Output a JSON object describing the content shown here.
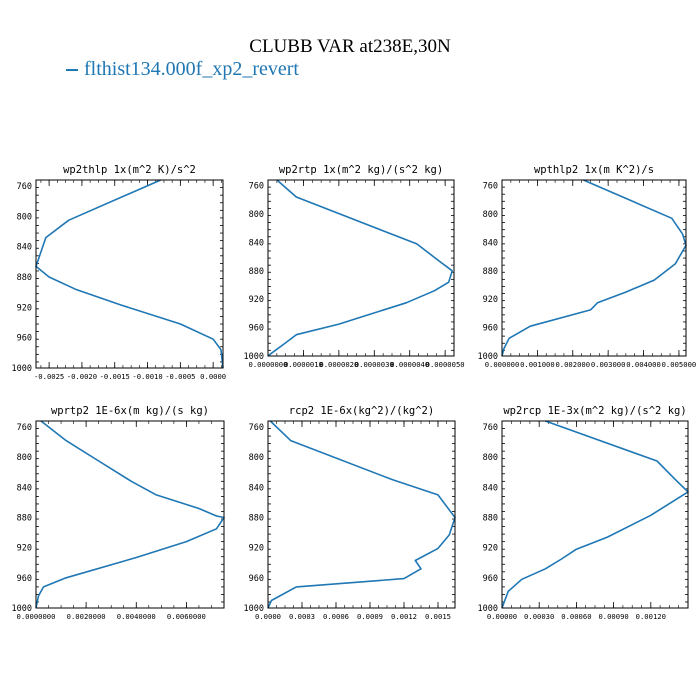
{
  "figure": {
    "title": "CLUBB VAR at238E,30N",
    "legend_label": "flthist134.000f_xp2_revert",
    "line_color": "#1f77b4"
  },
  "chart_data": [
    {
      "type": "line",
      "title": "wp2thlp  1x(m^2 K)/s^2",
      "xlim": [
        -0.0027,
        0.00015
      ],
      "ylim": [
        1000,
        752
      ],
      "xticks": [
        -0.0025,
        -0.002,
        -0.0015,
        -0.001,
        -0.0005,
        0.0
      ],
      "xtick_labels": [
        "-0.0025",
        "-0.0020",
        "-0.0015",
        "-0.0010",
        "-0.0005",
        "0.0000"
      ],
      "yticks": [
        760,
        800,
        840,
        880,
        920,
        960,
        1000
      ],
      "series": [
        {
          "x": [
            -0.0008,
            -0.0022,
            -0.00255,
            -0.0027,
            -0.0025,
            -0.0021,
            -0.0014,
            -0.0005,
            0.0,
            0.00012,
            0.00015
          ],
          "y": [
            752,
            805,
            828,
            866,
            880,
            896,
            917,
            942,
            962,
            976,
            1000
          ]
        }
      ]
    },
    {
      "type": "line",
      "title": "wp2rtp  1x(m^2 kg)/(s^2 kg)",
      "xlim": [
        0.0,
        5.25e-06
      ],
      "ylim": [
        1000,
        752
      ],
      "xticks": [
        0.0,
        1e-06,
        2e-06,
        3e-06,
        4e-06,
        5e-06
      ],
      "xtick_labels": [
        "0.0000000",
        "0.0000010",
        "0.0000020",
        "0.0000030",
        "0.0000040",
        "0.0000050"
      ],
      "yticks": [
        760,
        800,
        840,
        880,
        920,
        960,
        1000
      ],
      "series": [
        {
          "x": [
            2.5e-07,
            8e-07,
            4.2e-06,
            4.8e-06,
            5.2e-06,
            5.1e-06,
            4.7e-06,
            3.9e-06,
            2e-06,
            8e-07,
            4e-07,
            1e-07,
            0.0
          ],
          "y": [
            752,
            776,
            842,
            865,
            880,
            896,
            908,
            925,
            955,
            970,
            985,
            996,
            1000
          ]
        }
      ]
    },
    {
      "type": "line",
      "title": "wpthlp2  1x(m K^2)/s",
      "xlim": [
        0.0,
        0.0052
      ],
      "ylim": [
        1000,
        752
      ],
      "xticks": [
        0.0,
        0.001,
        0.002,
        0.003,
        0.004,
        0.005
      ],
      "xtick_labels": [
        "0.000000",
        "0.001000",
        "0.002000",
        "0.003000",
        "0.004000",
        "0.005000"
      ],
      "yticks": [
        760,
        800,
        840,
        880,
        920,
        960,
        1000
      ],
      "series": [
        {
          "x": [
            0.0023,
            0.0048,
            0.0051,
            0.0052,
            0.0049,
            0.0043,
            0.0035,
            0.0027,
            0.0025,
            0.0008,
            0.0002,
            5e-05,
            0.0
          ],
          "y": [
            752,
            806,
            828,
            844,
            870,
            893,
            910,
            925,
            935,
            958,
            975,
            990,
            1000
          ]
        }
      ]
    },
    {
      "type": "line",
      "title": "wprtp2  1E-6x(m kg)/(s kg)",
      "xlim": [
        0.0,
        0.0075
      ],
      "ylim": [
        1000,
        752
      ],
      "xticks": [
        0.0,
        0.002,
        0.004,
        0.006
      ],
      "xtick_labels": [
        "0.0000000",
        "0.0020000",
        "0.0040000",
        "0.0060000"
      ],
      "yticks": [
        760,
        800,
        840,
        880,
        920,
        960,
        1000
      ],
      "series": [
        {
          "x": [
            0.0002,
            0.0012,
            0.0025,
            0.0038,
            0.0048,
            0.0065,
            0.0072,
            0.0075,
            0.0072,
            0.006,
            0.004,
            0.0012,
            0.0003,
            0.0001,
            0.0
          ],
          "y": [
            752,
            778,
            805,
            832,
            850,
            868,
            878,
            880,
            895,
            912,
            933,
            960,
            972,
            984,
            1000
          ]
        }
      ]
    },
    {
      "type": "line",
      "title": "rcp2  1E-6x(kg^2)/(kg^2)",
      "xlim": [
        0.0,
        0.00165
      ],
      "ylim": [
        1000,
        752
      ],
      "xticks": [
        0.0,
        0.0003,
        0.0006,
        0.0009,
        0.0012,
        0.0015
      ],
      "xtick_labels": [
        "0.0000",
        "0.0003",
        "0.0006",
        "0.0009",
        "0.0012",
        "0.0015"
      ],
      "yticks": [
        760,
        800,
        840,
        880,
        920,
        960,
        1000
      ],
      "series": [
        {
          "x": [
            2e-05,
            0.0002,
            0.0011,
            0.0015,
            0.00165,
            0.0016,
            0.0015,
            0.0013,
            0.00135,
            0.0012,
            0.00025,
            3e-05,
            0.0
          ],
          "y": [
            752,
            778,
            830,
            850,
            880,
            903,
            921,
            937,
            948,
            961,
            972,
            990,
            1000
          ]
        }
      ]
    },
    {
      "type": "line",
      "title": "wp2rcp  1E-3x(m^2 kg)/(s^2 kg)",
      "xlim": [
        0.0,
        0.0015
      ],
      "ylim": [
        1000,
        752
      ],
      "xticks": [
        0.0,
        0.0003,
        0.0006,
        0.0009,
        0.0012
      ],
      "xtick_labels": [
        "0.00000",
        "0.00030",
        "0.00060",
        "0.00090",
        "0.00120"
      ],
      "yticks": [
        760,
        800,
        840,
        880,
        920,
        960,
        1000
      ],
      "series": [
        {
          "x": [
            0.00035,
            0.00125,
            0.0014,
            0.0015,
            0.0012,
            0.00085,
            0.0006,
            0.00048,
            0.00035,
            0.00016,
            5e-05,
            0.0
          ],
          "y": [
            752,
            805,
            830,
            846,
            877,
            906,
            922,
            935,
            948,
            962,
            978,
            1000
          ]
        }
      ]
    }
  ]
}
